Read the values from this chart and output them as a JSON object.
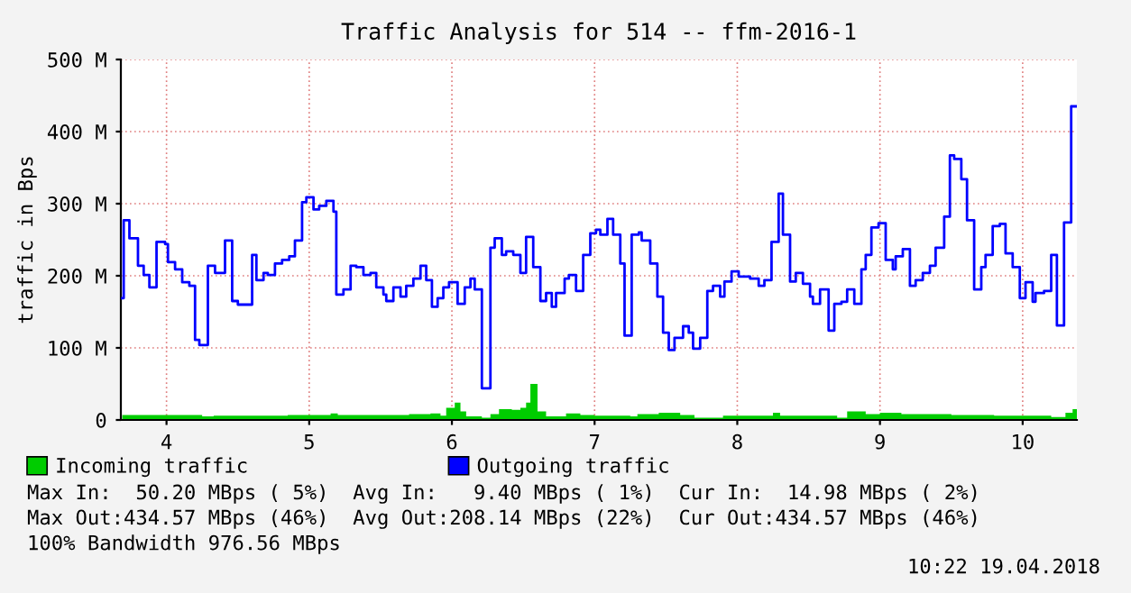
{
  "chart_data": {
    "type": "step",
    "title": "Traffic Analysis for 514 -- ffm-2016-1",
    "ylabel": "traffic in Bps",
    "xlim": [
      3.68,
      10.38
    ],
    "xticks": [
      4,
      5,
      6,
      7,
      8,
      9,
      10
    ],
    "ylim": [
      0,
      500
    ],
    "yticks": [
      {
        "value": 0,
        "label": "0"
      },
      {
        "value": 100,
        "label": "100 M"
      },
      {
        "value": 200,
        "label": "200 M"
      },
      {
        "value": 300,
        "label": "300 M"
      },
      {
        "value": 400,
        "label": "400 M"
      },
      {
        "value": 500,
        "label": "500 M"
      }
    ],
    "grid": true,
    "legend": "bottom",
    "series": [
      {
        "name": "Incoming traffic",
        "type": "area",
        "color": "#00cc00",
        "x": [
          3.69,
          4.25,
          4.33,
          4.85,
          5.15,
          5.2,
          5.7,
          5.85,
          5.92,
          5.96,
          6.02,
          6.06,
          6.1,
          6.21,
          6.27,
          6.33,
          6.42,
          6.48,
          6.52,
          6.55,
          6.6,
          6.66,
          6.8,
          6.9,
          7.0,
          7.25,
          7.3,
          7.45,
          7.6,
          7.7,
          7.9,
          8.1,
          8.25,
          8.3,
          8.7,
          8.77,
          8.9,
          9.0,
          9.15,
          9.5,
          9.8,
          10.2,
          10.3,
          10.35,
          10.38
        ],
        "values": [
          7,
          5,
          6,
          7,
          9,
          7,
          8,
          9,
          6,
          17,
          24,
          12,
          5,
          3,
          8,
          15,
          14,
          17,
          24,
          50,
          12,
          5,
          9,
          7,
          6,
          5,
          8,
          10,
          7,
          3,
          6,
          6,
          10,
          6,
          3,
          12,
          8,
          10,
          8,
          7,
          6,
          4,
          10,
          15,
          15
        ]
      },
      {
        "name": "Outgoing traffic",
        "color": "#0000ff",
        "x": [
          3.69,
          3.7,
          3.74,
          3.8,
          3.84,
          3.88,
          3.93,
          3.99,
          4.01,
          4.06,
          4.11,
          4.16,
          4.2,
          4.23,
          4.29,
          4.34,
          4.41,
          4.46,
          4.5,
          4.6,
          4.63,
          4.68,
          4.71,
          4.76,
          4.81,
          4.86,
          4.9,
          4.95,
          4.98,
          5.03,
          5.07,
          5.12,
          5.17,
          5.19,
          5.24,
          5.29,
          5.33,
          5.38,
          5.43,
          5.47,
          5.52,
          5.54,
          5.59,
          5.64,
          5.68,
          5.73,
          5.78,
          5.82,
          5.86,
          5.9,
          5.94,
          5.98,
          6.04,
          6.09,
          6.13,
          6.16,
          6.21,
          6.27,
          6.3,
          6.35,
          6.38,
          6.43,
          6.48,
          6.52,
          6.57,
          6.62,
          6.66,
          6.7,
          6.73,
          6.79,
          6.82,
          6.87,
          6.92,
          6.97,
          7.01,
          7.04,
          7.09,
          7.13,
          7.18,
          7.21,
          7.26,
          7.31,
          7.33,
          7.39,
          7.44,
          7.48,
          7.52,
          7.56,
          7.62,
          7.66,
          7.69,
          7.74,
          7.79,
          7.83,
          7.88,
          7.91,
          7.96,
          8.01,
          8.09,
          8.15,
          8.19,
          8.24,
          8.29,
          8.32,
          8.37,
          8.41,
          8.46,
          8.51,
          8.53,
          8.58,
          8.64,
          8.68,
          8.73,
          8.77,
          8.82,
          8.87,
          8.9,
          8.94,
          8.99,
          9.04,
          9.09,
          9.11,
          9.16,
          9.21,
          9.25,
          9.3,
          9.35,
          9.39,
          9.45,
          9.49,
          9.52,
          9.57,
          9.61,
          9.66,
          9.71,
          9.74,
          9.79,
          9.84,
          9.88,
          9.93,
          9.98,
          10.02,
          10.07,
          10.09,
          10.15,
          10.2,
          10.24,
          10.29,
          10.34,
          10.38
        ],
        "values": [
          169,
          277,
          252,
          214,
          201,
          184,
          247,
          244,
          219,
          209,
          191,
          186,
          111,
          104,
          214,
          204,
          249,
          165,
          160,
          229,
          194,
          204,
          201,
          217,
          222,
          227,
          249,
          302,
          309,
          292,
          297,
          304,
          289,
          174,
          181,
          214,
          212,
          201,
          204,
          184,
          174,
          165,
          184,
          171,
          186,
          196,
          214,
          194,
          157,
          169,
          184,
          191,
          161,
          184,
          196,
          181,
          44,
          239,
          252,
          229,
          234,
          229,
          204,
          254,
          212,
          165,
          176,
          157,
          176,
          196,
          201,
          179,
          229,
          259,
          264,
          257,
          279,
          257,
          217,
          117,
          257,
          260,
          249,
          217,
          171,
          121,
          97,
          114,
          130,
          121,
          99,
          114,
          179,
          186,
          171,
          192,
          206,
          199,
          196,
          186,
          194,
          247,
          314,
          257,
          192,
          204,
          189,
          171,
          161,
          181,
          124,
          161,
          164,
          181,
          161,
          209,
          229,
          267,
          273,
          222,
          209,
          227,
          237,
          186,
          194,
          204,
          214,
          239,
          282,
          367,
          362,
          334,
          277,
          181,
          212,
          229,
          269,
          272,
          231,
          212,
          169,
          191,
          164,
          176,
          179,
          229,
          131,
          274,
          435,
          435
        ]
      }
    ],
    "annotations": [
      "Max In:  50.20 MBps ( 5%)  Avg In:   9.40 MBps ( 1%)  Cur In:  14.98 MBps ( 2%)",
      "Max Out:434.57 MBps (46%)  Avg Out:208.14 MBps (22%)  Cur Out:434.57 MBps (46%)",
      "100% Bandwidth 976.56 MBps",
      "10:22 19.04.2018"
    ]
  }
}
